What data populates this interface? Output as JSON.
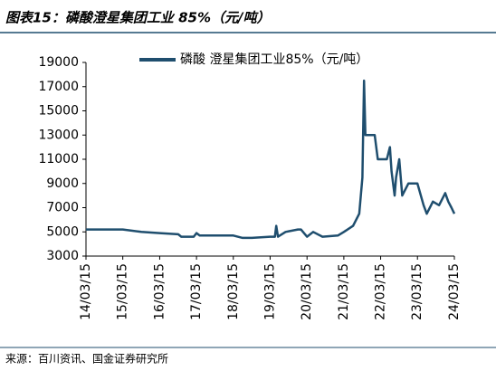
{
  "chart_data": {
    "type": "line",
    "title": "图表15：磷酸澄星集团工业 85%（元/吨）",
    "source": "来源：百川资讯、国金证券研究所",
    "x": [
      "2014-03-15",
      "2014-09-15",
      "2015-03-15",
      "2015-09-15",
      "2016-03-15",
      "2016-09-15",
      "2016-10-15",
      "2017-02-15",
      "2017-03-15",
      "2017-04-15",
      "2017-09-15",
      "2018-03-15",
      "2018-06-15",
      "2018-09-15",
      "2019-03-15",
      "2019-05-01",
      "2019-05-15",
      "2019-06-01",
      "2019-08-15",
      "2019-12-15",
      "2020-01-15",
      "2020-03-15",
      "2020-05-15",
      "2020-08-15",
      "2021-01-15",
      "2021-03-15",
      "2021-06-15",
      "2021-08-15",
      "2021-09-15",
      "2021-10-01",
      "2021-10-15",
      "2021-11-15",
      "2022-01-15",
      "2022-02-15",
      "2022-05-15",
      "2022-06-15",
      "2022-07-01",
      "2022-08-01",
      "2022-08-15",
      "2022-09-15",
      "2022-10-15",
      "2022-12-15",
      "2023-03-15",
      "2023-05-15",
      "2023-06-15",
      "2023-08-15",
      "2023-10-15",
      "2023-12-15",
      "2024-01-15",
      "2024-02-15",
      "2024-03-15"
    ],
    "series": [
      {
        "name": "磷酸 澄星集团工业85%（元/吨）",
        "color": "#1f4e6e",
        "values": [
          5200,
          5200,
          5200,
          5000,
          4900,
          4800,
          4600,
          4600,
          4900,
          4700,
          4700,
          4700,
          4500,
          4500,
          4600,
          4600,
          5500,
          4600,
          5000,
          5200,
          5200,
          4600,
          5000,
          4600,
          4700,
          5000,
          5500,
          6500,
          9500,
          17500,
          13000,
          13000,
          13000,
          11000,
          11000,
          12000,
          10000,
          8000,
          9500,
          11000,
          8000,
          9000,
          9000,
          7200,
          6500,
          7500,
          7200,
          8200,
          7500,
          7000,
          6500
        ]
      }
    ],
    "xlim": [
      "2014-03-15",
      "2024-03-15"
    ],
    "xticks": [
      {
        "value": "2014-03-15",
        "label": "14/03/15"
      },
      {
        "value": "2015-03-15",
        "label": "15/03/15"
      },
      {
        "value": "2016-03-15",
        "label": "16/03/15"
      },
      {
        "value": "2017-03-15",
        "label": "17/03/15"
      },
      {
        "value": "2018-03-15",
        "label": "18/03/15"
      },
      {
        "value": "2019-03-15",
        "label": "19/03/15"
      },
      {
        "value": "2020-03-15",
        "label": "20/03/15"
      },
      {
        "value": "2021-03-15",
        "label": "21/03/15"
      },
      {
        "value": "2022-03-15",
        "label": "22/03/15"
      },
      {
        "value": "2023-03-15",
        "label": "23/03/15"
      },
      {
        "value": "2024-03-15",
        "label": "24/03/15"
      }
    ],
    "ylim": [
      3000,
      19000
    ],
    "yticks": [
      3000,
      5000,
      7000,
      9000,
      11000,
      13000,
      15000,
      17000,
      19000
    ]
  }
}
